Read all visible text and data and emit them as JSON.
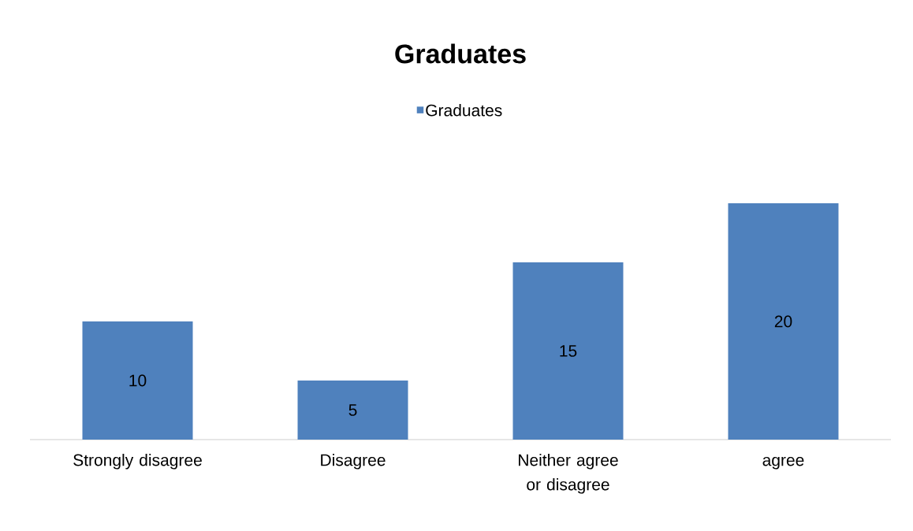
{
  "chart_data": {
    "type": "bar",
    "title": "Graduates",
    "categories": [
      "Strongly disagree",
      "Disagree",
      "Neither agree or disagree",
      "agree"
    ],
    "series": [
      {
        "name": "Graduates",
        "color": "#4f81bd",
        "values": [
          10,
          5,
          15,
          20
        ]
      }
    ],
    "data_labels": true,
    "legend": "top"
  }
}
